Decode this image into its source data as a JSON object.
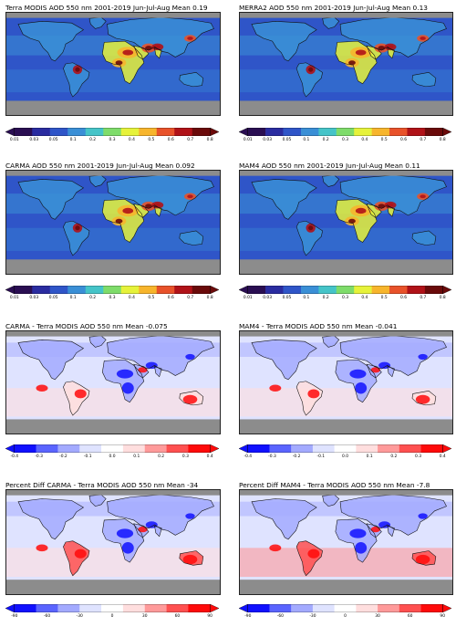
{
  "colors": {
    "land_gray": "#8c8c8c",
    "coast": "#111111",
    "aod_ramp": [
      "#2a0e52",
      "#2a2ca0",
      "#2f55c8",
      "#3a8fd6",
      "#45c4c8",
      "#7edc6a",
      "#e6f23a",
      "#f7b52c",
      "#e8522a",
      "#b01218",
      "#6a0a0a"
    ],
    "diff_ramp": [
      "#1010ff",
      "#5a64ff",
      "#a3aaff",
      "#dfe3ff",
      "#ffffff",
      "#ffdede",
      "#ff9a9a",
      "#ff5050",
      "#ff0a0a"
    ]
  },
  "panels": [
    {
      "id": "terra",
      "title": "Terra MODIS AOD 550 nm   2001-2019 Jun-Jul-Aug   Mean 0.19",
      "scale": "aod"
    },
    {
      "id": "merra2",
      "title": "MERRA2 AOD 550 nm   2001-2019 Jun-Jul-Aug   Mean 0.13",
      "scale": "aod"
    },
    {
      "id": "carma",
      "title": "CARMA AOD 550 nm   2001-2019 Jun-Jul-Aug   Mean 0.092",
      "scale": "aod"
    },
    {
      "id": "mam4",
      "title": "MAM4 AOD 550 nm   2001-2019 Jun-Jul-Aug   Mean 0.11",
      "scale": "aod"
    },
    {
      "id": "carma_diff",
      "title": "CARMA - Terra MODIS AOD 550 nm   Mean -0.075",
      "scale": "diff"
    },
    {
      "id": "mam4_diff",
      "title": "MAM4 - Terra MODIS AOD 550 nm   Mean -0.041",
      "scale": "diff"
    },
    {
      "id": "carma_pct",
      "title": "Percent Diff CARMA - Terra MODIS AOD 550 nm   Mean -34",
      "scale": "pct"
    },
    {
      "id": "mam4_pct",
      "title": "Percent Diff MAM4 - Terra MODIS AOD 550 nm   Mean -7.8",
      "scale": "pct"
    }
  ],
  "scales": {
    "aod": [
      "0.01",
      "0.03",
      "0.05",
      "0.1",
      "0.2",
      "0.3",
      "0.4",
      "0.5",
      "0.6",
      "0.7",
      "0.8"
    ],
    "aod_carma": [
      "0.01",
      "0.03",
      "0.05",
      "0.1",
      "0.2",
      "0.3",
      "0.4",
      "0.5",
      "0.6",
      "0.7",
      "0.8"
    ],
    "diff": [
      "-0.4",
      "-0.3",
      "-0.2",
      "-0.1",
      "0.0",
      "0.1",
      "0.2",
      "0.3",
      "0.4"
    ],
    "pct": [
      "-90",
      "-60",
      "-30",
      "0",
      "30",
      "60",
      "90"
    ]
  },
  "chart_data": [
    {
      "type": "heatmap",
      "title": "Terra MODIS AOD 550 nm   2001-2019 Jun-Jul-Aug   Mean 0.19",
      "colorbar_ticks": [
        0.01,
        0.03,
        0.05,
        0.1,
        0.2,
        0.3,
        0.4,
        0.5,
        0.6,
        0.7,
        0.8
      ],
      "mean": 0.19
    },
    {
      "type": "heatmap",
      "title": "MERRA2 AOD 550 nm   2001-2019 Jun-Jul-Aug   Mean 0.13",
      "colorbar_ticks": [
        0.01,
        0.03,
        0.05,
        0.1,
        0.2,
        0.3,
        0.4,
        0.5,
        0.6,
        0.7,
        0.8
      ],
      "mean": 0.13
    },
    {
      "type": "heatmap",
      "title": "CARMA AOD 550 nm   2001-2019 Jun-Jul-Aug   Mean 0.092",
      "colorbar_ticks": [
        0.01,
        0.03,
        0.05,
        0.1,
        0.2,
        0.3,
        0.4,
        0.5,
        0.6,
        0.7,
        0.8
      ],
      "mean": 0.092
    },
    {
      "type": "heatmap",
      "title": "MAM4 AOD 550 nm   2001-2019 Jun-Jul-Aug   Mean 0.11",
      "colorbar_ticks": [
        0.01,
        0.03,
        0.05,
        0.1,
        0.2,
        0.3,
        0.4,
        0.5,
        0.6,
        0.7,
        0.8
      ],
      "mean": 0.11
    },
    {
      "type": "heatmap",
      "title": "CARMA - Terra MODIS AOD 550 nm   Mean -0.075",
      "colorbar_ticks": [
        -0.4,
        -0.3,
        -0.2,
        -0.1,
        0.0,
        0.1,
        0.2,
        0.3,
        0.4
      ],
      "mean": -0.075
    },
    {
      "type": "heatmap",
      "title": "MAM4 - Terra MODIS AOD 550 nm   Mean -0.041",
      "colorbar_ticks": [
        -0.4,
        -0.3,
        -0.2,
        -0.1,
        0.0,
        0.1,
        0.2,
        0.3,
        0.4
      ],
      "mean": -0.041
    },
    {
      "type": "heatmap",
      "title": "Percent Diff CARMA - Terra MODIS AOD 550 nm   Mean -34",
      "colorbar_ticks": [
        -90,
        -60,
        -30,
        0,
        30,
        60,
        90
      ],
      "mean": -34
    },
    {
      "type": "heatmap",
      "title": "Percent Diff MAM4 - Terra MODIS AOD 550 nm   Mean -7.8",
      "colorbar_ticks": [
        -90,
        -60,
        -30,
        0,
        30,
        60,
        90
      ],
      "mean": -7.8
    }
  ]
}
